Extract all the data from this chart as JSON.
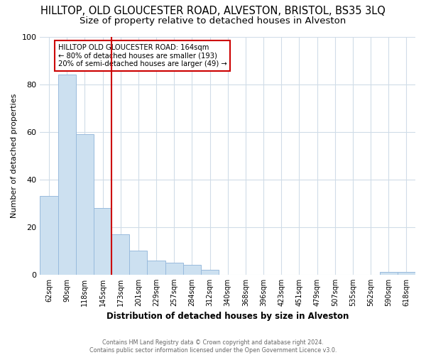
{
  "title": "HILLTOP, OLD GLOUCESTER ROAD, ALVESTON, BRISTOL, BS35 3LQ",
  "subtitle": "Size of property relative to detached houses in Alveston",
  "xlabel": "Distribution of detached houses by size in Alveston",
  "ylabel": "Number of detached properties",
  "footer": "Contains HM Land Registry data © Crown copyright and database right 2024.\nContains public sector information licensed under the Open Government Licence v3.0.",
  "categories": [
    "62sqm",
    "90sqm",
    "118sqm",
    "145sqm",
    "173sqm",
    "201sqm",
    "229sqm",
    "257sqm",
    "284sqm",
    "312sqm",
    "340sqm",
    "368sqm",
    "396sqm",
    "423sqm",
    "451sqm",
    "479sqm",
    "507sqm",
    "535sqm",
    "562sqm",
    "590sqm",
    "618sqm"
  ],
  "values": [
    33,
    84,
    59,
    28,
    17,
    10,
    6,
    5,
    4,
    2,
    0,
    0,
    0,
    0,
    0,
    0,
    0,
    0,
    0,
    1,
    1
  ],
  "bar_color": "#cce0f0",
  "bar_edge_color": "#99bbdd",
  "marker_line_color": "#cc0000",
  "annotation_line1": "HILLTOP OLD GLOUCESTER ROAD: 164sqm",
  "annotation_line2": "← 80% of detached houses are smaller (193)",
  "annotation_line3": "20% of semi-detached houses are larger (49) →",
  "annotation_box_color": "#ffffff",
  "annotation_box_edge_color": "#cc0000",
  "ylim": [
    0,
    100
  ],
  "background_color": "#ffffff",
  "plot_background": "#ffffff",
  "title_fontsize": 10.5,
  "subtitle_fontsize": 9.5,
  "grid_color": "#d0dce8"
}
